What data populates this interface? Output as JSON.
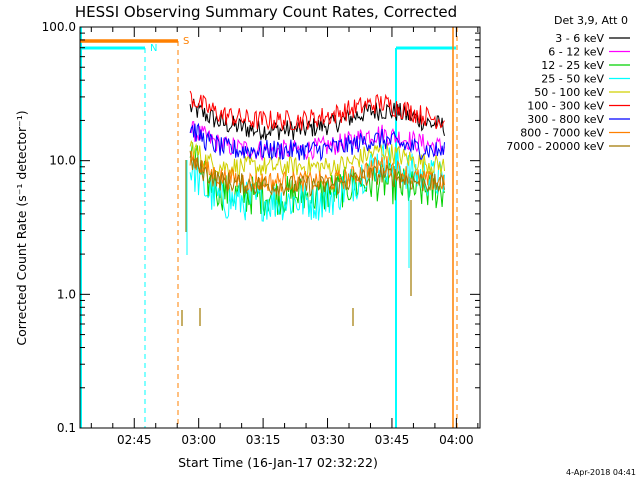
{
  "chart_data": {
    "type": "line",
    "title": "HESSI Observing Summary Count Rates, Corrected",
    "xlabel": "Start Time (16-Jan-17 02:32:22)",
    "ylabel": "Corrected Count Rate (s⁻¹ detector⁻¹)",
    "ylog": true,
    "ylim": [
      0.1,
      100
    ],
    "xlim_minutes": [
      "02:32:22",
      "04:05:30"
    ],
    "yticks": [
      {
        "v": 0.1,
        "label": "0.1"
      },
      {
        "v": 1,
        "label": "1.0"
      },
      {
        "v": 10,
        "label": "10.0"
      },
      {
        "v": 100,
        "label": "100.0"
      }
    ],
    "xticks": [
      "02:45",
      "03:00",
      "03:15",
      "03:30",
      "03:45",
      "04:00"
    ],
    "timestamp": "4-Apr-2018 04:41",
    "legend_header": "Det 3,9, Att 0",
    "legend_position": "top-right",
    "series": [
      {
        "name": "3 - 6 keV",
        "color": "#000000",
        "start": "02:58:00",
        "end": "03:57:30",
        "values": [
          25,
          22,
          19,
          18,
          17,
          17,
          17,
          17,
          18,
          19,
          21,
          23,
          24,
          23,
          21,
          19,
          18
        ]
      },
      {
        "name": "6 - 12 keV",
        "color": "#ff00ff",
        "start": "02:58:00",
        "end": "03:57:30",
        "values": [
          17,
          15,
          13,
          12.5,
          12,
          12,
          12,
          12,
          12.5,
          13,
          14,
          15.5,
          16,
          15,
          14,
          13,
          12.5
        ]
      },
      {
        "name": "12 - 25 keV",
        "color": "#00d000",
        "start": "02:58:00",
        "end": "03:57:30",
        "values": [
          12,
          7,
          6,
          5.5,
          5.5,
          5.5,
          5.5,
          5.5,
          5.5,
          6,
          6.5,
          7,
          7,
          6.5,
          6,
          6,
          6
        ]
      },
      {
        "name": "25 - 50 keV",
        "color": "#00ffff",
        "start": "02:58:00",
        "end": "03:57:30",
        "values": [
          9,
          6,
          5,
          5,
          5,
          5,
          5,
          5,
          5,
          5.5,
          6.5,
          8.5,
          10,
          9,
          8,
          7.5,
          7
        ]
      },
      {
        "name": "50 - 100 keV",
        "color": "#d0d000",
        "start": "02:58:00",
        "end": "03:57:30",
        "values": [
          13,
          10,
          9,
          9,
          9,
          9,
          9,
          9,
          9,
          9,
          9.5,
          11,
          12,
          11,
          10,
          9.5,
          9
        ]
      },
      {
        "name": "100 - 300 keV",
        "color": "#ff0000",
        "start": "02:58:00",
        "end": "03:57:30",
        "values": [
          30,
          25,
          22,
          21,
          20,
          20,
          20,
          20,
          21,
          22,
          24,
          26,
          27,
          25,
          23,
          21,
          20
        ]
      },
      {
        "name": "300 - 800 keV",
        "color": "#0000ff",
        "start": "02:58:00",
        "end": "03:57:30",
        "values": [
          18,
          14,
          12.5,
          12,
          12,
          12,
          12,
          12,
          12,
          12.5,
          13,
          14,
          14.5,
          13.5,
          12.5,
          12,
          11.5
        ]
      },
      {
        "name": "800 - 7000 keV",
        "color": "#ff8000",
        "start": "02:58:00",
        "end": "03:57:30",
        "values": [
          11,
          8.5,
          7.5,
          7.2,
          7,
          7,
          7,
          7,
          7,
          7,
          7.5,
          8.5,
          9.5,
          8.5,
          7.5,
          7,
          7
        ]
      },
      {
        "name": "7000 - 20000 keV",
        "color": "#a07800",
        "start": "02:58:00",
        "end": "03:57:30",
        "values": [
          10,
          8,
          7,
          6.8,
          6.6,
          6.5,
          6.5,
          6.5,
          6.5,
          6.5,
          7,
          7.5,
          8,
          7.5,
          7,
          6.8,
          6.5
        ]
      }
    ],
    "annotations": [
      {
        "label": "N",
        "color": "#00ffff"
      },
      {
        "label": "S",
        "color": "#ff8000"
      }
    ]
  }
}
